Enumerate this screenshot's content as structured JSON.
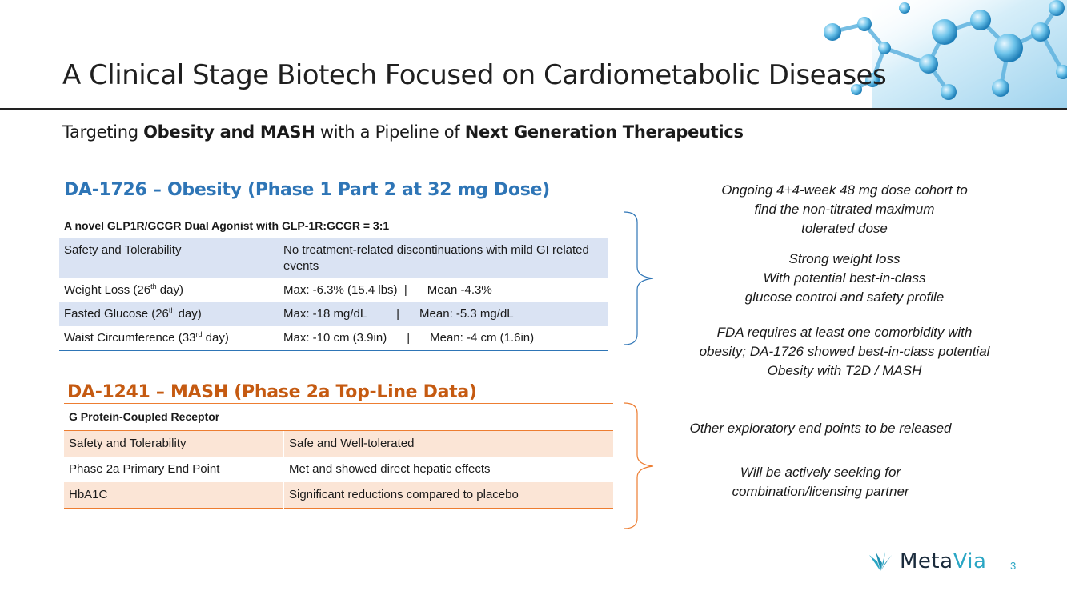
{
  "slide": {
    "title": "A Clinical Stage Biotech Focused on Cardiometabolic Diseases",
    "subtitle": {
      "part1": "Targeting ",
      "bold1": "Obesity and MASH",
      "part2": " with a Pipeline of ",
      "bold2": "Next Generation Therapeutics"
    },
    "page_number": "3"
  },
  "section1": {
    "title": "DA-1726 – Obesity (Phase 1 Part 2 at 32 mg Dose)",
    "header": "A novel GLP1R/GCGR Dual Agonist with GLP-1R:GCGR = 3:1",
    "rows": [
      {
        "label": "Safety and Tolerability",
        "value": "No treatment-related discontinuations with mild GI related events"
      },
      {
        "label_pre": "Weight Loss (26",
        "label_sup": "th",
        "label_post": " day)",
        "value": "Max: -6.3% (15.4 lbs)  |      Mean -4.3%"
      },
      {
        "label_pre": "Fasted Glucose (26",
        "label_sup": "th",
        "label_post": " day)",
        "value": "Max: -18 mg/dL         |      Mean: -5.3 mg/dL"
      },
      {
        "label_pre": "Waist Circumference (33",
        "label_sup": "rd",
        "label_post": " day)",
        "value": "Max: -10 cm (3.9in)      |      Mean: -4 cm (1.6in)"
      }
    ]
  },
  "section2": {
    "title": "DA-1241 – MASH (Phase 2a Top-Line Data)",
    "header": "G Protein-Coupled Receptor",
    "rows": [
      {
        "label": "Safety and Tolerability",
        "value": "Safe and Well-tolerated"
      },
      {
        "label": "Phase 2a Primary End Point",
        "value": "Met and showed direct hepatic effects"
      },
      {
        "label": "HbA1C",
        "value": "Significant reductions compared to placebo"
      }
    ]
  },
  "notes1": [
    [
      "Ongoing 4+4-week 48 mg dose cohort to",
      "find the non-titrated maximum",
      "tolerated dose"
    ],
    [
      "Strong weight loss",
      "With potential best-in-class",
      "glucose control and safety profile"
    ],
    [
      "FDA requires at least one comorbidity with",
      "obesity; DA-1726 showed best-in-class potential",
      "Obesity with T2D / MASH"
    ]
  ],
  "notes2": [
    [
      "Other exploratory end points to be released"
    ],
    [
      "Will be actively seeking for",
      "combination/licensing partner"
    ]
  ],
  "logo": {
    "meta": "Meta",
    "via": "Via"
  },
  "colors": {
    "blue": "#2e75b6",
    "orange": "#c55a11",
    "blue_shade": "#dae3f3",
    "orange_shade": "#fbe5d6",
    "logo_teal": "#2aa6c4"
  }
}
